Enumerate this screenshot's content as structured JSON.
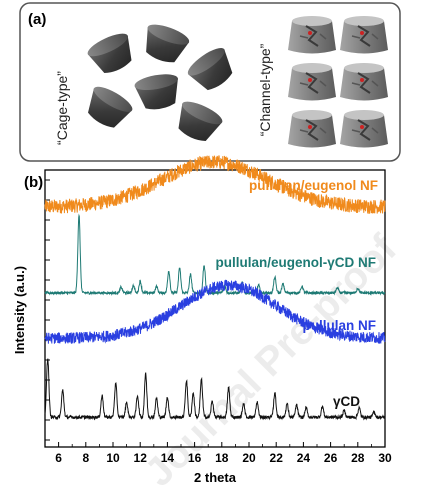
{
  "panel_a": {
    "label": "(a)",
    "left_label": "“Cage-type”",
    "right_label": "“Channel-type”",
    "colors": {
      "frame": "#555555",
      "cage_dark": "#3a3a3a",
      "cage_mid": "#5a5a5a",
      "channel_gray": "#8a8a8a",
      "oxygen_red": "#cc2222"
    }
  },
  "panel_b": {
    "label": "(b)",
    "watermark": "Journal Pre-proof"
  },
  "chart_data": {
    "type": "line",
    "xlabel": "2 theta",
    "ylabel": "Intensity (a.u.)",
    "xlim": [
      5,
      30
    ],
    "x_ticks": [
      6,
      8,
      10,
      12,
      14,
      16,
      18,
      20,
      22,
      24,
      26,
      28,
      30
    ],
    "x_tick_labels": [
      "6",
      "8",
      "10",
      "12",
      "14",
      "16",
      "18",
      "20",
      "22",
      "24",
      "26",
      "28",
      "30"
    ],
    "y_units": "arbitrary (stacked, offset traces)",
    "series": [
      {
        "name": "pullulan/eugenol NF",
        "color": "#f08a1c",
        "shape": "broad amorphous halo",
        "baseline": 0.55,
        "halo_center": 17.5,
        "halo_width": 5.5,
        "halo_height": 0.75,
        "noise": 0.12,
        "peaks": []
      },
      {
        "name": "pullulan/eugenol-γCD NF",
        "color": "#1e7a74",
        "shape": "crystalline peaks on flat baseline",
        "baseline": 0.35,
        "noise": 0.05,
        "peaks": [
          [
            7.5,
            3.0
          ],
          [
            10.6,
            0.22
          ],
          [
            11.5,
            0.28
          ],
          [
            12.0,
            0.45
          ],
          [
            13.2,
            0.25
          ],
          [
            14.1,
            0.85
          ],
          [
            14.9,
            0.95
          ],
          [
            15.7,
            0.7
          ],
          [
            16.7,
            1.05
          ],
          [
            18.2,
            0.3
          ],
          [
            19.5,
            0.4
          ],
          [
            20.7,
            0.3
          ],
          [
            21.9,
            0.6
          ],
          [
            22.5,
            0.35
          ],
          [
            23.9,
            0.25
          ],
          [
            26.5,
            0.2
          ],
          [
            28.0,
            0.18
          ]
        ]
      },
      {
        "name": "pullulan NF",
        "color": "#2a3fe0",
        "shape": "broad amorphous halo",
        "baseline": 0.35,
        "halo_center": 18.5,
        "halo_width": 5.0,
        "halo_height": 1.1,
        "noise": 0.12,
        "peaks": []
      },
      {
        "name": "γCD",
        "color": "#111111",
        "shape": "crystalline diffractogram",
        "baseline": 0.4,
        "noise": 0.06,
        "peaks": [
          [
            5.2,
            2.2
          ],
          [
            6.3,
            1.0
          ],
          [
            9.2,
            0.8
          ],
          [
            10.2,
            1.25
          ],
          [
            11.0,
            0.55
          ],
          [
            11.8,
            0.8
          ],
          [
            12.4,
            1.6
          ],
          [
            13.2,
            0.7
          ],
          [
            14.0,
            0.75
          ],
          [
            15.4,
            1.35
          ],
          [
            15.9,
            0.9
          ],
          [
            16.5,
            1.4
          ],
          [
            17.3,
            0.6
          ],
          [
            18.5,
            1.1
          ],
          [
            19.6,
            0.5
          ],
          [
            20.6,
            0.55
          ],
          [
            21.9,
            0.9
          ],
          [
            22.8,
            0.5
          ],
          [
            23.5,
            0.45
          ],
          [
            24.2,
            0.35
          ],
          [
            25.4,
            0.4
          ],
          [
            27.0,
            0.25
          ],
          [
            28.1,
            0.35
          ],
          [
            29.2,
            0.2
          ]
        ]
      }
    ]
  }
}
